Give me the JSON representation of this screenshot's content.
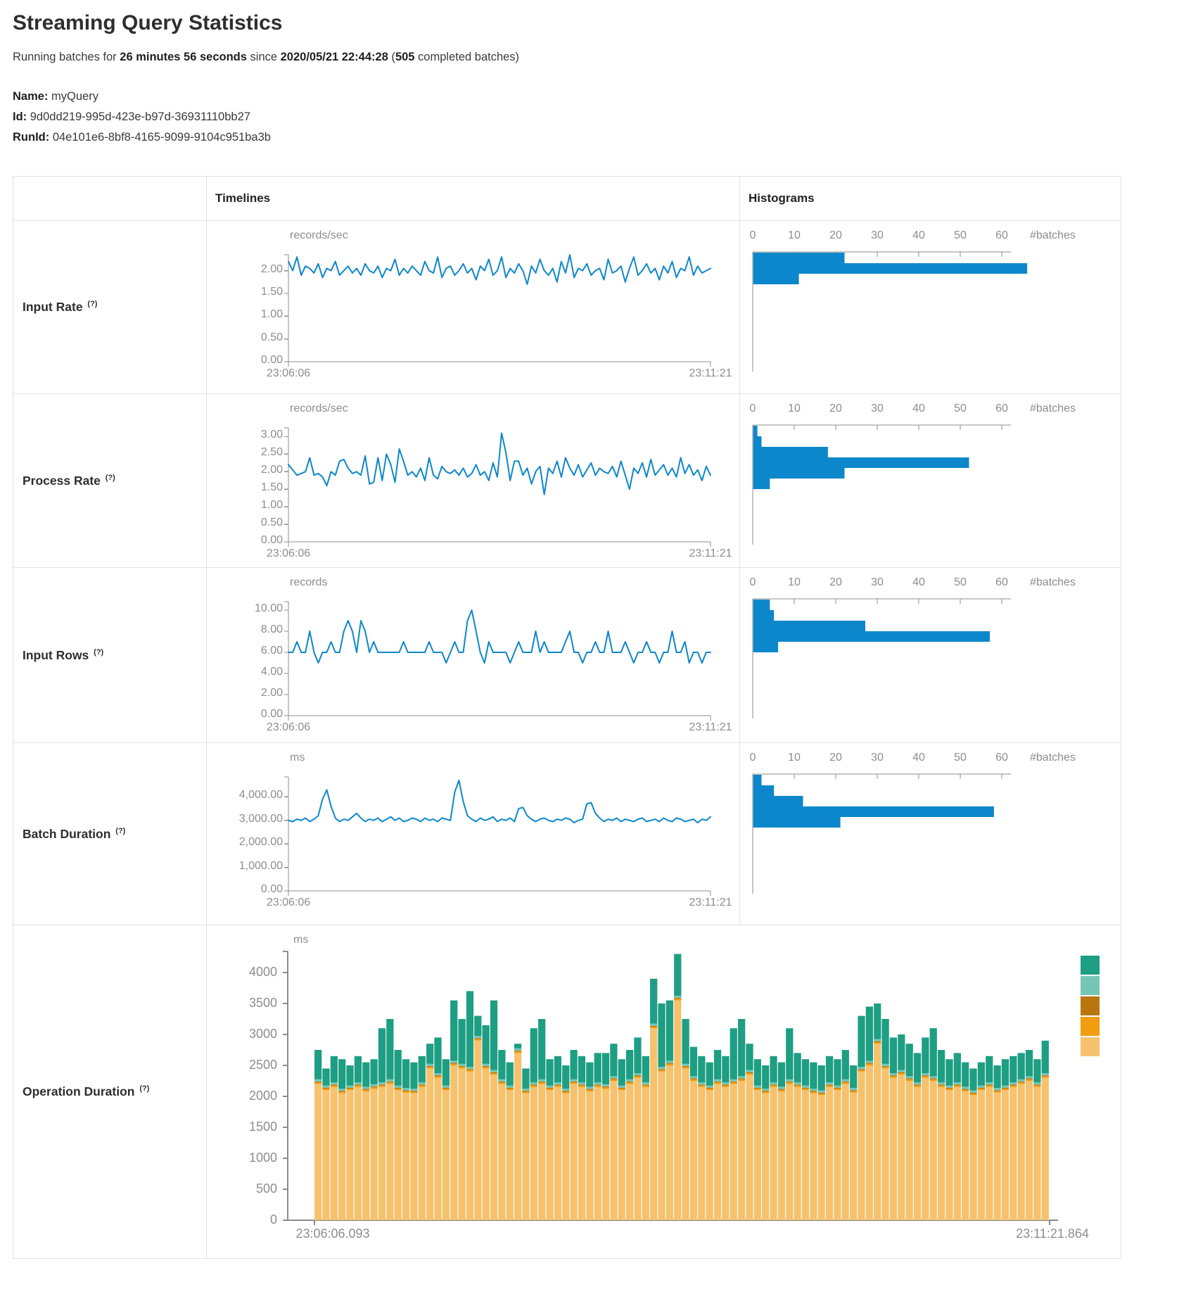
{
  "header": {
    "title": "Streaming Query Statistics",
    "summary": {
      "prefix": "Running batches for ",
      "duration": "26 minutes 56 seconds",
      "mid": " since ",
      "since": "2020/05/21 22:44:28",
      "open_paren": " (",
      "completed_count": "505",
      "suffix": " completed batches)"
    }
  },
  "meta": {
    "name_label": "Name:",
    "name": " myQuery",
    "id_label": "Id:",
    "id": " 9d0dd219-995d-423e-b97d-36931110bb27",
    "runid_label": "RunId:",
    "runid": " 04e101e6-8bf8-4165-9099-9104c951ba3b"
  },
  "table": {
    "timelines_header": "Timelines",
    "histograms_header": "Histograms"
  },
  "colors": {
    "line_blue": "#0d87cb",
    "hist_bar_blue": "#0d87cb",
    "axis_gray": "#8c8c8c",
    "tick_text_gray": "#8d8d8d",
    "op_green": "#1e9e83",
    "op_light_teal": "#74c7b3",
    "op_brown": "#b8770e",
    "op_orange": "#f29d0e",
    "op_tan": "#f6c26e"
  },
  "chart_data": [
    {
      "type": "line",
      "row_label": "Input Rate",
      "help_marker": "(?)",
      "unit": "records/sec",
      "x_start": "23:06:06",
      "x_end": "23:11:21",
      "y_tick_values": [
        0,
        0.5,
        1,
        1.5,
        2
      ],
      "y_tick_labels": [
        "0.00",
        "0.50",
        "1.00",
        "1.50",
        "2.00"
      ],
      "y_domain_max": 2.35,
      "values": [
        2.2,
        2.0,
        2.3,
        1.9,
        2.1,
        2.05,
        1.95,
        2.15,
        1.85,
        2.05,
        2.0,
        2.2,
        1.9,
        2.0,
        2.1,
        1.95,
        2.05,
        1.9,
        2.15,
        2.0,
        1.95,
        2.1,
        1.85,
        2.05,
        2.0,
        2.25,
        1.9,
        2.05,
        1.95,
        2.1,
        2.0,
        1.9,
        2.2,
        2.0,
        1.95,
        2.3,
        1.85,
        2.05,
        2.1,
        1.9,
        2.0,
        2.15,
        1.95,
        2.05,
        1.8,
        2.1,
        2.0,
        2.25,
        1.9,
        2.0,
        2.3,
        1.85,
        2.05,
        1.95,
        2.15,
        2.0,
        1.7,
        2.1,
        1.95,
        2.25,
        2.0,
        1.9,
        2.05,
        1.75,
        2.2,
        1.95,
        2.35,
        1.85,
        2.05,
        2.0,
        2.15,
        1.9,
        2.0,
        2.05,
        1.8,
        2.25,
        1.95,
        2.0,
        2.1,
        1.75,
        2.05,
        2.3,
        1.9,
        2.0,
        2.15,
        1.95,
        2.05,
        1.8,
        2.1,
        1.95,
        2.2,
        1.85,
        2.05,
        2.0,
        2.3,
        1.9,
        2.1,
        1.95,
        2.0,
        2.05
      ],
      "histogram": {
        "axis_tick_values": [
          0,
          10,
          20,
          30,
          40,
          50,
          60
        ],
        "axis_tick_labels": [
          "0",
          "10",
          "20",
          "30",
          "40",
          "50",
          "60"
        ],
        "axis_unit": "#batches",
        "bar_counts": [
          22,
          66,
          11
        ]
      }
    },
    {
      "type": "line",
      "row_label": "Process Rate",
      "help_marker": "(?)",
      "unit": "records/sec",
      "x_start": "23:06:06",
      "x_end": "23:11:21",
      "y_tick_values": [
        0,
        0.5,
        1,
        1.5,
        2,
        2.5,
        3
      ],
      "y_tick_labels": [
        "0.00",
        "0.50",
        "1.00",
        "1.50",
        "2.00",
        "2.50",
        "3.00"
      ],
      "y_domain_max": 3.25,
      "values": [
        2.2,
        2.05,
        1.9,
        1.95,
        2.0,
        2.4,
        1.9,
        1.95,
        1.85,
        1.6,
        2.0,
        1.9,
        2.3,
        2.35,
        2.1,
        1.95,
        2.0,
        1.9,
        2.45,
        1.65,
        1.7,
        2.4,
        1.75,
        2.5,
        2.2,
        1.7,
        2.65,
        2.3,
        1.9,
        2.0,
        1.85,
        2.1,
        1.75,
        2.4,
        1.9,
        1.8,
        2.15,
        2.0,
        1.95,
        2.05,
        1.9,
        2.1,
        1.85,
        1.95,
        2.2,
        1.9,
        2.0,
        1.75,
        2.25,
        1.85,
        3.1,
        2.55,
        1.75,
        2.3,
        2.3,
        1.9,
        2.1,
        1.65,
        2.0,
        2.15,
        1.35,
        2.1,
        1.95,
        2.3,
        1.85,
        2.4,
        2.1,
        1.9,
        2.2,
        1.85,
        2.05,
        2.25,
        1.9,
        2.1,
        2.0,
        1.95,
        2.15,
        1.85,
        2.3,
        1.9,
        1.5,
        2.1,
        1.95,
        2.25,
        1.85,
        2.35,
        1.9,
        2.05,
        2.2,
        1.9,
        2.1,
        1.85,
        2.4,
        1.95,
        2.2,
        1.9,
        2.05,
        1.75,
        2.15,
        1.9
      ],
      "histogram": {
        "axis_tick_values": [
          0,
          10,
          20,
          30,
          40,
          50,
          60
        ],
        "axis_tick_labels": [
          "0",
          "10",
          "20",
          "30",
          "40",
          "50",
          "60"
        ],
        "axis_unit": "#batches",
        "bar_counts": [
          1,
          2,
          18,
          52,
          22,
          4
        ]
      }
    },
    {
      "type": "line",
      "row_label": "Input Rows",
      "help_marker": "(?)",
      "unit": "records",
      "x_start": "23:06:06",
      "x_end": "23:11:21",
      "y_tick_values": [
        0,
        2,
        4,
        6,
        8,
        10
      ],
      "y_tick_labels": [
        "0.00",
        "2.00",
        "4.00",
        "6.00",
        "8.00",
        "10.00"
      ],
      "y_domain_max": 10.8,
      "values": [
        6,
        6,
        7,
        6,
        6,
        8,
        6,
        5,
        6,
        6,
        7,
        6,
        6,
        8,
        9,
        8,
        6,
        9,
        8,
        6,
        7,
        6,
        6,
        6,
        6,
        6,
        6,
        7,
        6,
        6,
        6,
        6,
        6,
        7,
        6,
        6,
        6,
        5,
        6,
        7,
        6,
        6,
        9,
        10,
        8,
        6,
        5,
        7,
        6,
        6,
        6,
        6,
        5,
        6,
        7,
        6,
        6,
        6,
        8,
        6,
        7,
        6,
        6,
        6,
        6,
        7,
        8,
        6,
        6,
        5,
        6,
        6,
        7,
        6,
        6,
        8,
        6,
        6,
        6,
        7,
        6,
        5,
        6,
        6,
        7,
        6,
        6,
        5,
        6,
        6,
        8,
        6,
        6,
        7,
        5,
        6,
        6,
        5,
        6,
        6
      ],
      "histogram": {
        "axis_tick_values": [
          0,
          10,
          20,
          30,
          40,
          50,
          60
        ],
        "axis_tick_labels": [
          "0",
          "10",
          "20",
          "30",
          "40",
          "50",
          "60"
        ],
        "axis_unit": "#batches",
        "bar_counts": [
          4,
          5,
          27,
          57,
          6
        ]
      }
    },
    {
      "type": "line",
      "row_label": "Batch Duration",
      "help_marker": "(?)",
      "unit": "ms",
      "x_start": "23:06:06",
      "x_end": "23:11:21",
      "y_tick_values": [
        0,
        1000,
        2000,
        3000,
        4000
      ],
      "y_tick_labels": [
        "0.00",
        "1,000.00",
        "2,000.00",
        "3,000.00",
        "4,000.00"
      ],
      "y_domain_max": 4850,
      "values": [
        3000,
        2950,
        3050,
        3000,
        3100,
        2950,
        3050,
        3200,
        3900,
        4300,
        3600,
        3100,
        2950,
        3050,
        3000,
        3150,
        3300,
        3100,
        2950,
        3050,
        3000,
        3100,
        2950,
        3050,
        3150,
        3000,
        3100,
        2950,
        3000,
        3100,
        3050,
        2950,
        3100,
        3000,
        3050,
        2950,
        3100,
        3050,
        3000,
        4200,
        4700,
        3800,
        3200,
        3050,
        2950,
        3100,
        3000,
        3050,
        3150,
        2950,
        3050,
        3000,
        3100,
        2950,
        3500,
        3550,
        3200,
        3050,
        2950,
        3050,
        3100,
        3000,
        2950,
        3050,
        3000,
        3100,
        3050,
        2900,
        3000,
        3050,
        3700,
        3750,
        3300,
        3100,
        2950,
        3050,
        3000,
        3100,
        2950,
        3050,
        3000,
        2950,
        3050,
        3100,
        2950,
        3000,
        3050,
        2950,
        3100,
        3000,
        2950,
        3100,
        3050,
        2950,
        3000,
        3050,
        2900,
        3050,
        3000,
        3150
      ],
      "histogram": {
        "axis_tick_values": [
          0,
          10,
          20,
          30,
          40,
          50,
          60
        ],
        "axis_tick_labels": [
          "0",
          "10",
          "20",
          "30",
          "40",
          "50",
          "60"
        ],
        "axis_unit": "#batches",
        "bar_counts": [
          2,
          5,
          12,
          58,
          21
        ]
      }
    },
    {
      "type": "stacked-bar",
      "row_label": "Operation Duration",
      "help_marker": "(?)",
      "unit": "ms",
      "x_start": "23:06:06.093",
      "x_end": "23:11:21.864",
      "y_tick_values": [
        0,
        500,
        1000,
        1500,
        2000,
        2500,
        3000,
        3500,
        4000
      ],
      "y_tick_labels": [
        "0",
        "500",
        "1000",
        "1500",
        "2000",
        "2500",
        "3000",
        "3500",
        "4000"
      ],
      "y_domain_max": 4341,
      "stack_order_bottom_to_top": [
        "tan",
        "orange",
        "brown",
        "light-teal",
        "green"
      ],
      "sliver_ms": {
        "orange": 25,
        "brown": 15,
        "light_teal": 35
      },
      "bars_tan_total": [
        [
          2200,
          2750
        ],
        [
          2100,
          2450
        ],
        [
          2150,
          2650
        ],
        [
          2050,
          2600
        ],
        [
          2100,
          2500
        ],
        [
          2150,
          2650
        ],
        [
          2080,
          2550
        ],
        [
          2120,
          2600
        ],
        [
          2150,
          3100
        ],
        [
          2200,
          3250
        ],
        [
          2100,
          2750
        ],
        [
          2060,
          2600
        ],
        [
          2050,
          2550
        ],
        [
          2150,
          2650
        ],
        [
          2450,
          2850
        ],
        [
          2300,
          2950
        ],
        [
          2100,
          2600
        ],
        [
          2500,
          3550
        ],
        [
          2450,
          3250
        ],
        [
          2400,
          3700
        ],
        [
          2900,
          3300
        ],
        [
          2450,
          3150
        ],
        [
          2350,
          3550
        ],
        [
          2200,
          2750
        ],
        [
          2100,
          2550
        ],
        [
          2700,
          2850
        ],
        [
          2050,
          2450
        ],
        [
          2150,
          3100
        ],
        [
          2200,
          3250
        ],
        [
          2100,
          2600
        ],
        [
          2150,
          2650
        ],
        [
          2050,
          2500
        ],
        [
          2200,
          2750
        ],
        [
          2150,
          2650
        ],
        [
          2080,
          2550
        ],
        [
          2150,
          2700
        ],
        [
          2120,
          2700
        ],
        [
          2250,
          2850
        ],
        [
          2100,
          2600
        ],
        [
          2200,
          2750
        ],
        [
          2300,
          2950
        ],
        [
          2150,
          2650
        ],
        [
          3100,
          3900
        ],
        [
          2400,
          3500
        ],
        [
          2500,
          3550
        ],
        [
          3550,
          4300
        ],
        [
          2450,
          3250
        ],
        [
          2250,
          2800
        ],
        [
          2150,
          2650
        ],
        [
          2100,
          2550
        ],
        [
          2200,
          2750
        ],
        [
          2150,
          2650
        ],
        [
          2200,
          3100
        ],
        [
          2250,
          3250
        ],
        [
          2350,
          2850
        ],
        [
          2100,
          2600
        ],
        [
          2050,
          2500
        ],
        [
          2150,
          2650
        ],
        [
          2080,
          2550
        ],
        [
          2200,
          3100
        ],
        [
          2150,
          2700
        ],
        [
          2100,
          2600
        ],
        [
          2050,
          2550
        ],
        [
          2020,
          2500
        ],
        [
          2150,
          2650
        ],
        [
          2100,
          2600
        ],
        [
          2200,
          2750
        ],
        [
          2060,
          2500
        ],
        [
          2400,
          3300
        ],
        [
          2500,
          3450
        ],
        [
          2850,
          3500
        ],
        [
          2450,
          3250
        ],
        [
          2300,
          2950
        ],
        [
          2350,
          3000
        ],
        [
          2250,
          2850
        ],
        [
          2150,
          2700
        ],
        [
          2300,
          2950
        ],
        [
          2250,
          3100
        ],
        [
          2150,
          2750
        ],
        [
          2100,
          2600
        ],
        [
          2150,
          2700
        ],
        [
          2080,
          2550
        ],
        [
          2020,
          2450
        ],
        [
          2100,
          2550
        ],
        [
          2150,
          2650
        ],
        [
          2060,
          2500
        ],
        [
          2100,
          2600
        ],
        [
          2150,
          2650
        ],
        [
          2200,
          2700
        ],
        [
          2250,
          2750
        ],
        [
          2150,
          2600
        ],
        [
          2300,
          2900
        ]
      ],
      "legend_swatches_top_to_bottom": [
        "green",
        "light-teal",
        "brown",
        "orange",
        "tan"
      ]
    }
  ]
}
